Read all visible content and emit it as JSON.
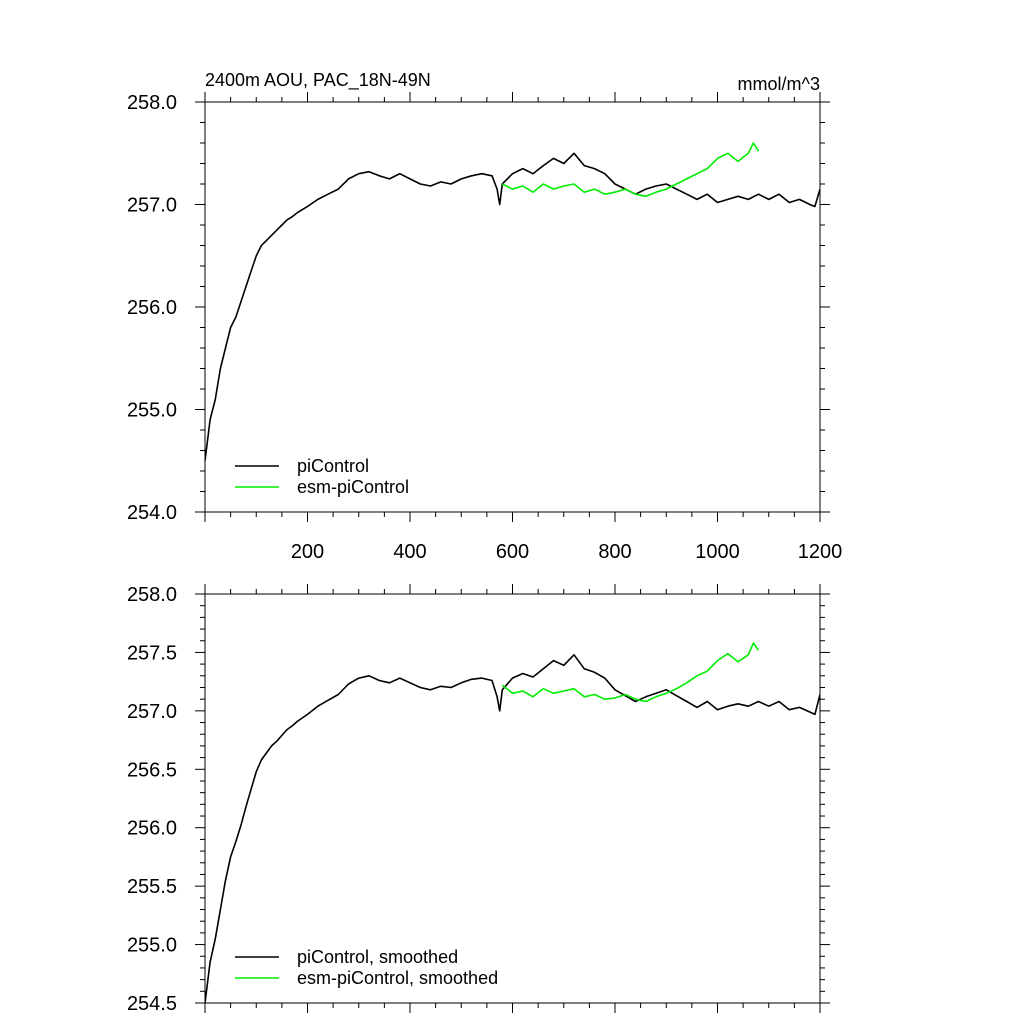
{
  "chart_data": [
    {
      "type": "line",
      "title": "2400m AOU, PAC_18N-49N",
      "units": "mmol/m^3",
      "xlim": [
        0,
        1200
      ],
      "ylim": [
        254.0,
        258.0
      ],
      "x_ticks": [
        "200",
        "400",
        "600",
        "800",
        "1000",
        "1200"
      ],
      "y_ticks": [
        "258.0",
        "257.0",
        "256.0",
        "255.0",
        "254.0"
      ],
      "legend_position": "bottom-left",
      "series": [
        {
          "name": "piControl",
          "color": "#000000",
          "x": [
            0,
            10,
            20,
            30,
            40,
            50,
            60,
            70,
            80,
            90,
            100,
            110,
            120,
            130,
            140,
            150,
            160,
            170,
            180,
            190,
            200,
            220,
            240,
            260,
            280,
            300,
            320,
            340,
            360,
            380,
            400,
            420,
            440,
            460,
            480,
            500,
            520,
            540,
            560,
            570,
            575,
            580,
            600,
            620,
            640,
            660,
            680,
            700,
            720,
            740,
            760,
            780,
            800,
            820,
            840,
            860,
            880,
            900,
            920,
            940,
            960,
            980,
            1000,
            1020,
            1040,
            1060,
            1080,
            1100,
            1120,
            1140,
            1160,
            1180,
            1190,
            1200
          ],
          "y": [
            254.5,
            254.9,
            255.1,
            255.4,
            255.6,
            255.8,
            255.9,
            256.05,
            256.2,
            256.35,
            256.5,
            256.6,
            256.65,
            256.7,
            256.75,
            256.8,
            256.85,
            256.88,
            256.92,
            256.95,
            256.98,
            257.05,
            257.1,
            257.15,
            257.25,
            257.3,
            257.32,
            257.28,
            257.25,
            257.3,
            257.25,
            257.2,
            257.18,
            257.22,
            257.2,
            257.25,
            257.28,
            257.3,
            257.28,
            257.15,
            257.0,
            257.2,
            257.3,
            257.35,
            257.3,
            257.38,
            257.45,
            257.4,
            257.5,
            257.38,
            257.35,
            257.3,
            257.2,
            257.15,
            257.1,
            257.15,
            257.18,
            257.2,
            257.15,
            257.1,
            257.05,
            257.1,
            257.02,
            257.05,
            257.08,
            257.05,
            257.1,
            257.05,
            257.1,
            257.02,
            257.05,
            257.0,
            256.98,
            257.15
          ]
        },
        {
          "name": "esm-piControl",
          "color": "#00ee00",
          "x": [
            580,
            600,
            620,
            640,
            660,
            680,
            700,
            720,
            740,
            760,
            780,
            800,
            820,
            840,
            860,
            880,
            900,
            920,
            940,
            960,
            980,
            1000,
            1020,
            1040,
            1060,
            1070,
            1080
          ],
          "y": [
            257.2,
            257.15,
            257.18,
            257.12,
            257.2,
            257.15,
            257.18,
            257.2,
            257.12,
            257.15,
            257.1,
            257.12,
            257.15,
            257.1,
            257.08,
            257.12,
            257.15,
            257.2,
            257.25,
            257.3,
            257.35,
            257.45,
            257.5,
            257.42,
            257.5,
            257.6,
            257.52
          ]
        }
      ]
    },
    {
      "type": "line",
      "title": "",
      "xlim": [
        0,
        1200
      ],
      "ylim": [
        254.5,
        258.0
      ],
      "y_ticks": [
        "258.0",
        "257.5",
        "257.0",
        "256.5",
        "256.0",
        "255.5",
        "255.0",
        "254.5"
      ],
      "legend_position": "bottom-left",
      "series": [
        {
          "name": "piControl, smoothed",
          "color": "#000000",
          "x": [
            0,
            10,
            20,
            30,
            40,
            50,
            60,
            70,
            80,
            90,
            100,
            110,
            120,
            130,
            140,
            150,
            160,
            170,
            180,
            190,
            200,
            220,
            240,
            260,
            280,
            300,
            320,
            340,
            360,
            380,
            400,
            420,
            440,
            460,
            480,
            500,
            520,
            540,
            560,
            570,
            575,
            580,
            600,
            620,
            640,
            660,
            680,
            700,
            720,
            740,
            760,
            780,
            800,
            820,
            840,
            860,
            880,
            900,
            920,
            940,
            960,
            980,
            1000,
            1020,
            1040,
            1060,
            1080,
            1100,
            1120,
            1140,
            1160,
            1180,
            1190,
            1200
          ],
          "y": [
            254.5,
            254.85,
            255.05,
            255.3,
            255.55,
            255.75,
            255.88,
            256.02,
            256.18,
            256.33,
            256.48,
            256.58,
            256.64,
            256.7,
            256.74,
            256.79,
            256.84,
            256.87,
            256.91,
            256.94,
            256.97,
            257.04,
            257.09,
            257.14,
            257.23,
            257.28,
            257.3,
            257.26,
            257.24,
            257.28,
            257.24,
            257.2,
            257.18,
            257.21,
            257.2,
            257.24,
            257.27,
            257.28,
            257.26,
            257.12,
            257.0,
            257.18,
            257.28,
            257.32,
            257.29,
            257.36,
            257.43,
            257.39,
            257.48,
            257.36,
            257.33,
            257.28,
            257.18,
            257.13,
            257.08,
            257.12,
            257.15,
            257.18,
            257.13,
            257.08,
            257.03,
            257.08,
            257.01,
            257.04,
            257.06,
            257.04,
            257.08,
            257.04,
            257.08,
            257.01,
            257.03,
            256.99,
            256.97,
            257.14
          ]
        },
        {
          "name": "esm-piControl, smoothed",
          "color": "#00ee00",
          "x": [
            580,
            600,
            620,
            640,
            660,
            680,
            700,
            720,
            740,
            760,
            780,
            800,
            820,
            840,
            860,
            880,
            900,
            920,
            940,
            960,
            980,
            1000,
            1020,
            1040,
            1060,
            1070,
            1080
          ],
          "y": [
            257.22,
            257.15,
            257.17,
            257.12,
            257.19,
            257.15,
            257.17,
            257.19,
            257.12,
            257.14,
            257.1,
            257.11,
            257.14,
            257.1,
            257.08,
            257.12,
            257.15,
            257.19,
            257.24,
            257.3,
            257.34,
            257.43,
            257.49,
            257.42,
            257.48,
            257.58,
            257.52
          ]
        }
      ]
    }
  ]
}
